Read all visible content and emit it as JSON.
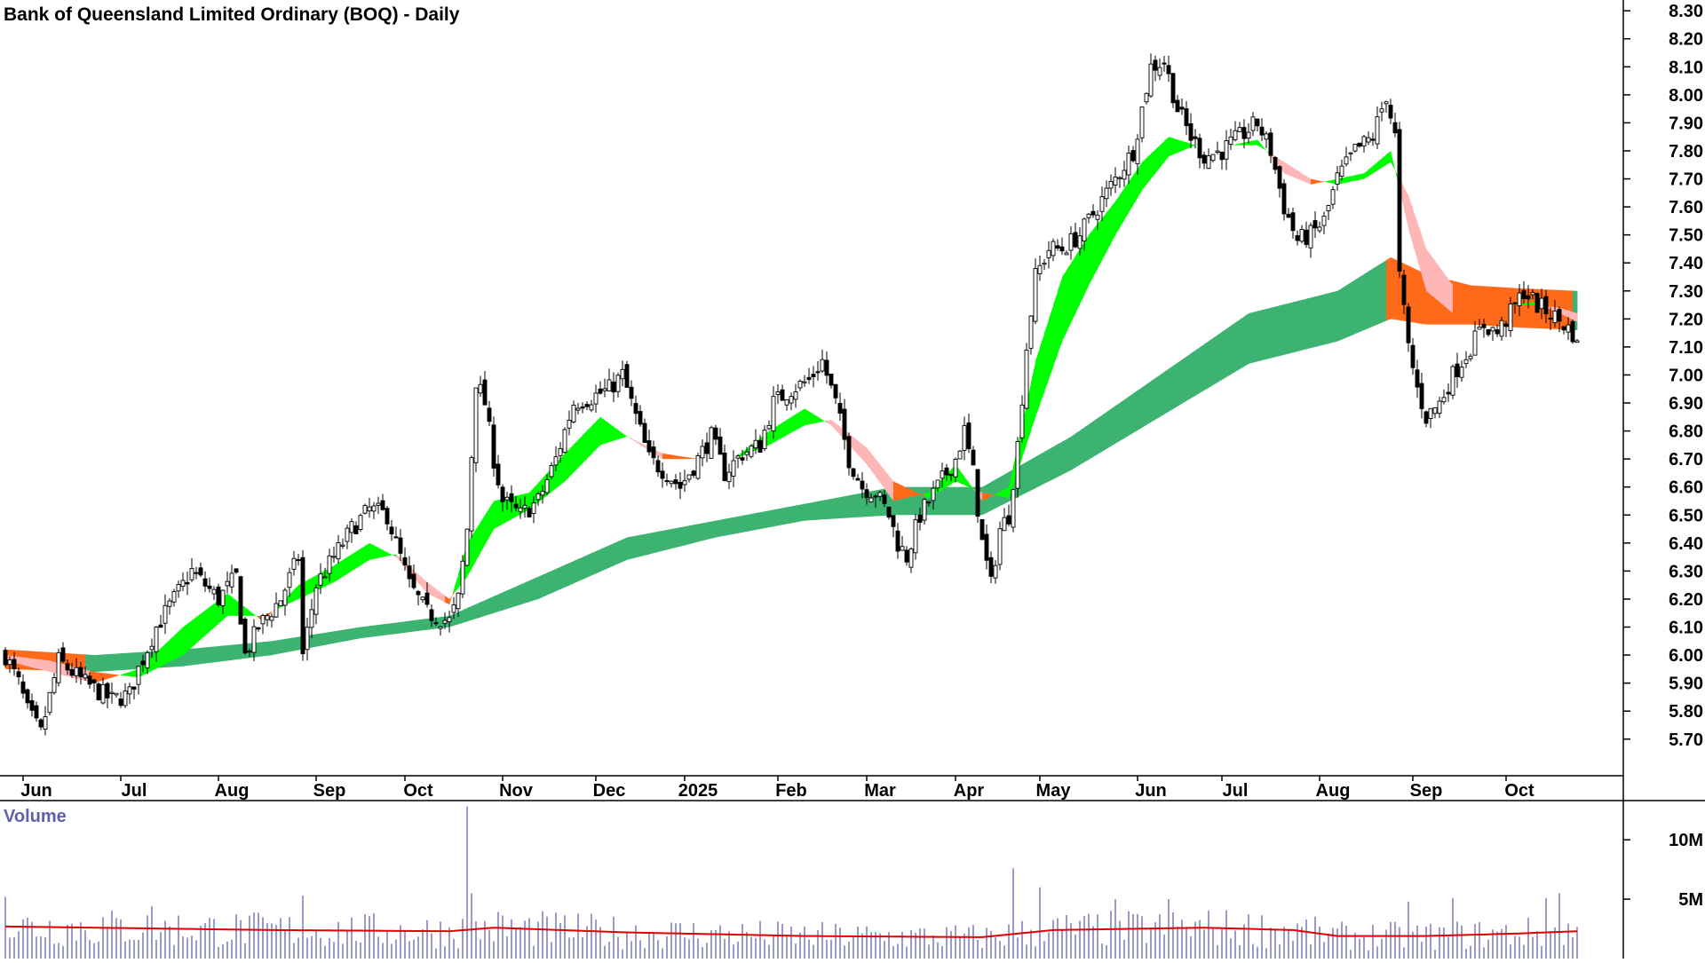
{
  "colors": {
    "background": "#ffffff",
    "candle": "#000000",
    "short_up": "#00ff00",
    "short_down": "#ff6a1a",
    "short_down_light": "#ffb6b6",
    "long_up": "#3cb371",
    "long_down": "#ff6a1a",
    "volume_bar": "#8080c0",
    "volume_ma": "#e00000",
    "volume_label": "#6060b0",
    "axis": "#000000"
  },
  "chart_data": [
    {
      "type": "candlestick",
      "title": "Bank of Queensland Limited Ordinary (BOQ) - Daily",
      "ylim": [
        5.62,
        8.31
      ],
      "y_ticks": [
        "8.30",
        "8.20",
        "8.10",
        "8.00",
        "7.90",
        "7.80",
        "7.70",
        "7.60",
        "7.50",
        "7.40",
        "7.30",
        "7.20",
        "7.10",
        "7.00",
        "6.90",
        "6.80",
        "6.70",
        "6.60",
        "6.50",
        "6.40",
        "6.30",
        "6.20",
        "6.10",
        "6.00",
        "5.90",
        "5.80",
        "5.70"
      ],
      "x_ticks": [
        {
          "label": "Jun",
          "index": 7
        },
        {
          "label": "Jul",
          "index": 29
        },
        {
          "label": "Aug",
          "index": 51
        },
        {
          "label": "Sep",
          "index": 73
        },
        {
          "label": "Oct",
          "index": 93
        },
        {
          "label": "Nov",
          "index": 115
        },
        {
          "label": "Dec",
          "index": 136
        },
        {
          "label": "2025",
          "index": 156
        },
        {
          "label": "Feb",
          "index": 177
        },
        {
          "label": "Mar",
          "index": 197
        },
        {
          "label": "Apr",
          "index": 217
        },
        {
          "label": "May",
          "index": 236
        },
        {
          "label": "Jun",
          "index": 258
        },
        {
          "label": "Jul",
          "index": 277
        },
        {
          "label": "Aug",
          "index": 299
        },
        {
          "label": "Sep",
          "index": 320
        },
        {
          "label": "Oct",
          "index": 341
        }
      ],
      "price_anchors": [
        [
          0,
          6.0
        ],
        [
          3,
          5.9
        ],
        [
          5,
          5.8
        ],
        [
          8,
          5.72
        ],
        [
          12,
          5.98
        ],
        [
          18,
          5.9
        ],
        [
          24,
          5.84
        ],
        [
          28,
          5.86
        ],
        [
          30,
          5.95
        ],
        [
          34,
          6.1
        ],
        [
          38,
          6.2
        ],
        [
          42,
          6.3
        ],
        [
          48,
          6.2
        ],
        [
          52,
          6.28
        ],
        [
          54,
          6.0
        ],
        [
          57,
          6.1
        ],
        [
          62,
          6.2
        ],
        [
          66,
          6.35
        ],
        [
          67,
          6.0
        ],
        [
          70,
          6.25
        ],
        [
          74,
          6.35
        ],
        [
          78,
          6.45
        ],
        [
          82,
          6.52
        ],
        [
          86,
          6.5
        ],
        [
          88,
          6.4
        ],
        [
          91,
          6.25
        ],
        [
          95,
          6.15
        ],
        [
          100,
          6.12
        ],
        [
          102,
          6.2
        ],
        [
          104,
          6.45
        ],
        [
          106,
          6.98
        ],
        [
          108,
          6.9
        ],
        [
          110,
          6.7
        ],
        [
          112,
          6.55
        ],
        [
          116,
          6.5
        ],
        [
          120,
          6.55
        ],
        [
          124,
          6.7
        ],
        [
          128,
          6.9
        ],
        [
          132,
          6.92
        ],
        [
          136,
          6.95
        ],
        [
          139,
          7.0
        ],
        [
          142,
          6.85
        ],
        [
          145,
          6.7
        ],
        [
          149,
          6.65
        ],
        [
          152,
          6.6
        ],
        [
          156,
          6.7
        ],
        [
          159,
          6.78
        ],
        [
          162,
          6.65
        ],
        [
          166,
          6.72
        ],
        [
          170,
          6.75
        ],
        [
          173,
          6.9
        ],
        [
          177,
          6.95
        ],
        [
          181,
          6.98
        ],
        [
          184,
          7.05
        ],
        [
          187,
          6.9
        ],
        [
          190,
          6.7
        ],
        [
          193,
          6.6
        ],
        [
          196,
          6.58
        ],
        [
          199,
          6.5
        ],
        [
          201,
          6.4
        ],
        [
          203,
          6.35
        ],
        [
          206,
          6.5
        ],
        [
          210,
          6.6
        ],
        [
          214,
          6.7
        ],
        [
          216,
          6.8
        ],
        [
          218,
          6.65
        ],
        [
          220,
          6.4
        ],
        [
          222,
          6.25
        ],
        [
          224,
          6.45
        ],
        [
          226,
          6.5
        ],
        [
          228,
          6.75
        ],
        [
          230,
          7.1
        ],
        [
          232,
          7.35
        ],
        [
          235,
          7.45
        ],
        [
          238,
          7.45
        ],
        [
          242,
          7.5
        ],
        [
          246,
          7.6
        ],
        [
          250,
          7.7
        ],
        [
          254,
          7.8
        ],
        [
          258,
          8.1
        ],
        [
          261,
          8.12
        ],
        [
          264,
          7.95
        ],
        [
          267,
          7.85
        ],
        [
          270,
          7.78
        ],
        [
          274,
          7.8
        ],
        [
          278,
          7.85
        ],
        [
          282,
          7.9
        ],
        [
          285,
          7.8
        ],
        [
          288,
          7.6
        ],
        [
          291,
          7.48
        ],
        [
          294,
          7.5
        ],
        [
          297,
          7.55
        ],
        [
          300,
          7.7
        ],
        [
          304,
          7.8
        ],
        [
          308,
          7.85
        ],
        [
          311,
          8.0
        ],
        [
          313,
          7.85
        ],
        [
          314,
          7.35
        ],
        [
          316,
          7.1
        ],
        [
          318,
          6.95
        ],
        [
          320,
          6.85
        ],
        [
          323,
          6.9
        ],
        [
          326,
          7.0
        ],
        [
          330,
          7.1
        ],
        [
          333,
          7.18
        ],
        [
          336,
          7.15
        ],
        [
          339,
          7.22
        ],
        [
          342,
          7.3
        ],
        [
          345,
          7.25
        ],
        [
          348,
          7.22
        ],
        [
          351,
          7.18
        ],
        [
          353,
          7.15
        ],
        [
          354,
          7.1
        ]
      ],
      "short_term_ma_band": {
        "fast": [
          [
            0,
            5.98
          ],
          [
            10,
            5.94
          ],
          [
            20,
            5.9
          ],
          [
            30,
            5.95
          ],
          [
            40,
            6.1
          ],
          [
            50,
            6.22
          ],
          [
            58,
            6.12
          ],
          [
            66,
            6.25
          ],
          [
            74,
            6.32
          ],
          [
            82,
            6.4
          ],
          [
            88,
            6.35
          ],
          [
            95,
            6.22
          ],
          [
            100,
            6.18
          ],
          [
            104,
            6.4
          ],
          [
            110,
            6.55
          ],
          [
            118,
            6.58
          ],
          [
            126,
            6.72
          ],
          [
            134,
            6.85
          ],
          [
            140,
            6.78
          ],
          [
            148,
            6.7
          ],
          [
            156,
            6.7
          ],
          [
            164,
            6.7
          ],
          [
            172,
            6.8
          ],
          [
            180,
            6.88
          ],
          [
            186,
            6.82
          ],
          [
            194,
            6.68
          ],
          [
            200,
            6.55
          ],
          [
            208,
            6.58
          ],
          [
            214,
            6.68
          ],
          [
            220,
            6.55
          ],
          [
            226,
            6.6
          ],
          [
            232,
            7.05
          ],
          [
            238,
            7.35
          ],
          [
            244,
            7.5
          ],
          [
            250,
            7.62
          ],
          [
            256,
            7.76
          ],
          [
            262,
            7.85
          ],
          [
            268,
            7.82
          ],
          [
            276,
            7.82
          ],
          [
            282,
            7.84
          ],
          [
            288,
            7.72
          ],
          [
            294,
            7.68
          ],
          [
            300,
            7.7
          ],
          [
            306,
            7.72
          ],
          [
            312,
            7.8
          ],
          [
            316,
            7.52
          ],
          [
            320,
            7.3
          ],
          [
            326,
            7.22
          ],
          [
            332,
            7.22
          ],
          [
            338,
            7.25
          ],
          [
            344,
            7.26
          ],
          [
            350,
            7.22
          ],
          [
            354,
            7.19
          ]
        ],
        "slow": [
          [
            0,
            6.0
          ],
          [
            10,
            5.98
          ],
          [
            20,
            5.94
          ],
          [
            30,
            5.92
          ],
          [
            40,
            6.0
          ],
          [
            50,
            6.14
          ],
          [
            58,
            6.14
          ],
          [
            66,
            6.2
          ],
          [
            74,
            6.26
          ],
          [
            82,
            6.34
          ],
          [
            88,
            6.36
          ],
          [
            95,
            6.26
          ],
          [
            100,
            6.2
          ],
          [
            104,
            6.28
          ],
          [
            110,
            6.45
          ],
          [
            118,
            6.52
          ],
          [
            126,
            6.62
          ],
          [
            134,
            6.75
          ],
          [
            140,
            6.78
          ],
          [
            148,
            6.72
          ],
          [
            156,
            6.7
          ],
          [
            164,
            6.7
          ],
          [
            172,
            6.75
          ],
          [
            180,
            6.82
          ],
          [
            186,
            6.84
          ],
          [
            194,
            6.74
          ],
          [
            200,
            6.62
          ],
          [
            208,
            6.56
          ],
          [
            214,
            6.62
          ],
          [
            220,
            6.58
          ],
          [
            226,
            6.56
          ],
          [
            232,
            6.85
          ],
          [
            238,
            7.12
          ],
          [
            244,
            7.32
          ],
          [
            250,
            7.5
          ],
          [
            256,
            7.66
          ],
          [
            262,
            7.78
          ],
          [
            268,
            7.82
          ],
          [
            276,
            7.82
          ],
          [
            282,
            7.82
          ],
          [
            288,
            7.76
          ],
          [
            294,
            7.7
          ],
          [
            300,
            7.68
          ],
          [
            306,
            7.7
          ],
          [
            312,
            7.76
          ],
          [
            316,
            7.64
          ],
          [
            320,
            7.45
          ],
          [
            326,
            7.32
          ],
          [
            332,
            7.27
          ],
          [
            338,
            7.25
          ],
          [
            344,
            7.25
          ],
          [
            350,
            7.24
          ],
          [
            354,
            7.22
          ]
        ]
      },
      "long_term_ma_band": {
        "upper": [
          [
            0,
            6.02
          ],
          [
            20,
            6.0
          ],
          [
            40,
            6.02
          ],
          [
            60,
            6.05
          ],
          [
            80,
            6.1
          ],
          [
            100,
            6.14
          ],
          [
            120,
            6.28
          ],
          [
            140,
            6.42
          ],
          [
            160,
            6.48
          ],
          [
            180,
            6.54
          ],
          [
            200,
            6.6
          ],
          [
            220,
            6.6
          ],
          [
            240,
            6.78
          ],
          [
            260,
            7.0
          ],
          [
            280,
            7.22
          ],
          [
            300,
            7.3
          ],
          [
            312,
            7.42
          ],
          [
            320,
            7.36
          ],
          [
            330,
            7.32
          ],
          [
            340,
            7.31
          ],
          [
            354,
            7.3
          ]
        ],
        "lower": [
          [
            0,
            5.95
          ],
          [
            20,
            5.94
          ],
          [
            40,
            5.96
          ],
          [
            60,
            6.0
          ],
          [
            80,
            6.06
          ],
          [
            100,
            6.1
          ],
          [
            120,
            6.2
          ],
          [
            140,
            6.34
          ],
          [
            160,
            6.42
          ],
          [
            180,
            6.48
          ],
          [
            200,
            6.5
          ],
          [
            220,
            6.5
          ],
          [
            240,
            6.66
          ],
          [
            260,
            6.85
          ],
          [
            280,
            7.04
          ],
          [
            300,
            7.12
          ],
          [
            312,
            7.2
          ],
          [
            320,
            7.18
          ],
          [
            330,
            7.18
          ],
          [
            340,
            7.17
          ],
          [
            354,
            7.16
          ]
        ]
      }
    },
    {
      "type": "bar",
      "title": "Volume",
      "ylim": [
        0,
        13000000
      ],
      "y_ticks": [
        "10M",
        "5M"
      ],
      "y_tick_values": [
        10000000,
        5000000
      ],
      "volume_moving_average": [
        [
          0,
          2.7
        ],
        [
          60,
          2.4
        ],
        [
          100,
          2.3
        ],
        [
          110,
          2.6
        ],
        [
          140,
          2.2
        ],
        [
          180,
          1.9
        ],
        [
          220,
          1.8
        ],
        [
          236,
          2.4
        ],
        [
          270,
          2.6
        ],
        [
          290,
          2.4
        ],
        [
          300,
          1.9
        ],
        [
          320,
          1.9
        ],
        [
          340,
          2.1
        ],
        [
          354,
          2.3
        ]
      ],
      "volume_spikes": [
        [
          0,
          5.2
        ],
        [
          33,
          4.4
        ],
        [
          67,
          5.3
        ],
        [
          104,
          12.8
        ],
        [
          105,
          5.5
        ],
        [
          227,
          7.6
        ],
        [
          233,
          6.0
        ],
        [
          250,
          5.0
        ],
        [
          262,
          5.0
        ],
        [
          316,
          4.8
        ],
        [
          326,
          5.1
        ],
        [
          347,
          5.1
        ],
        [
          350,
          5.5
        ]
      ]
    }
  ]
}
